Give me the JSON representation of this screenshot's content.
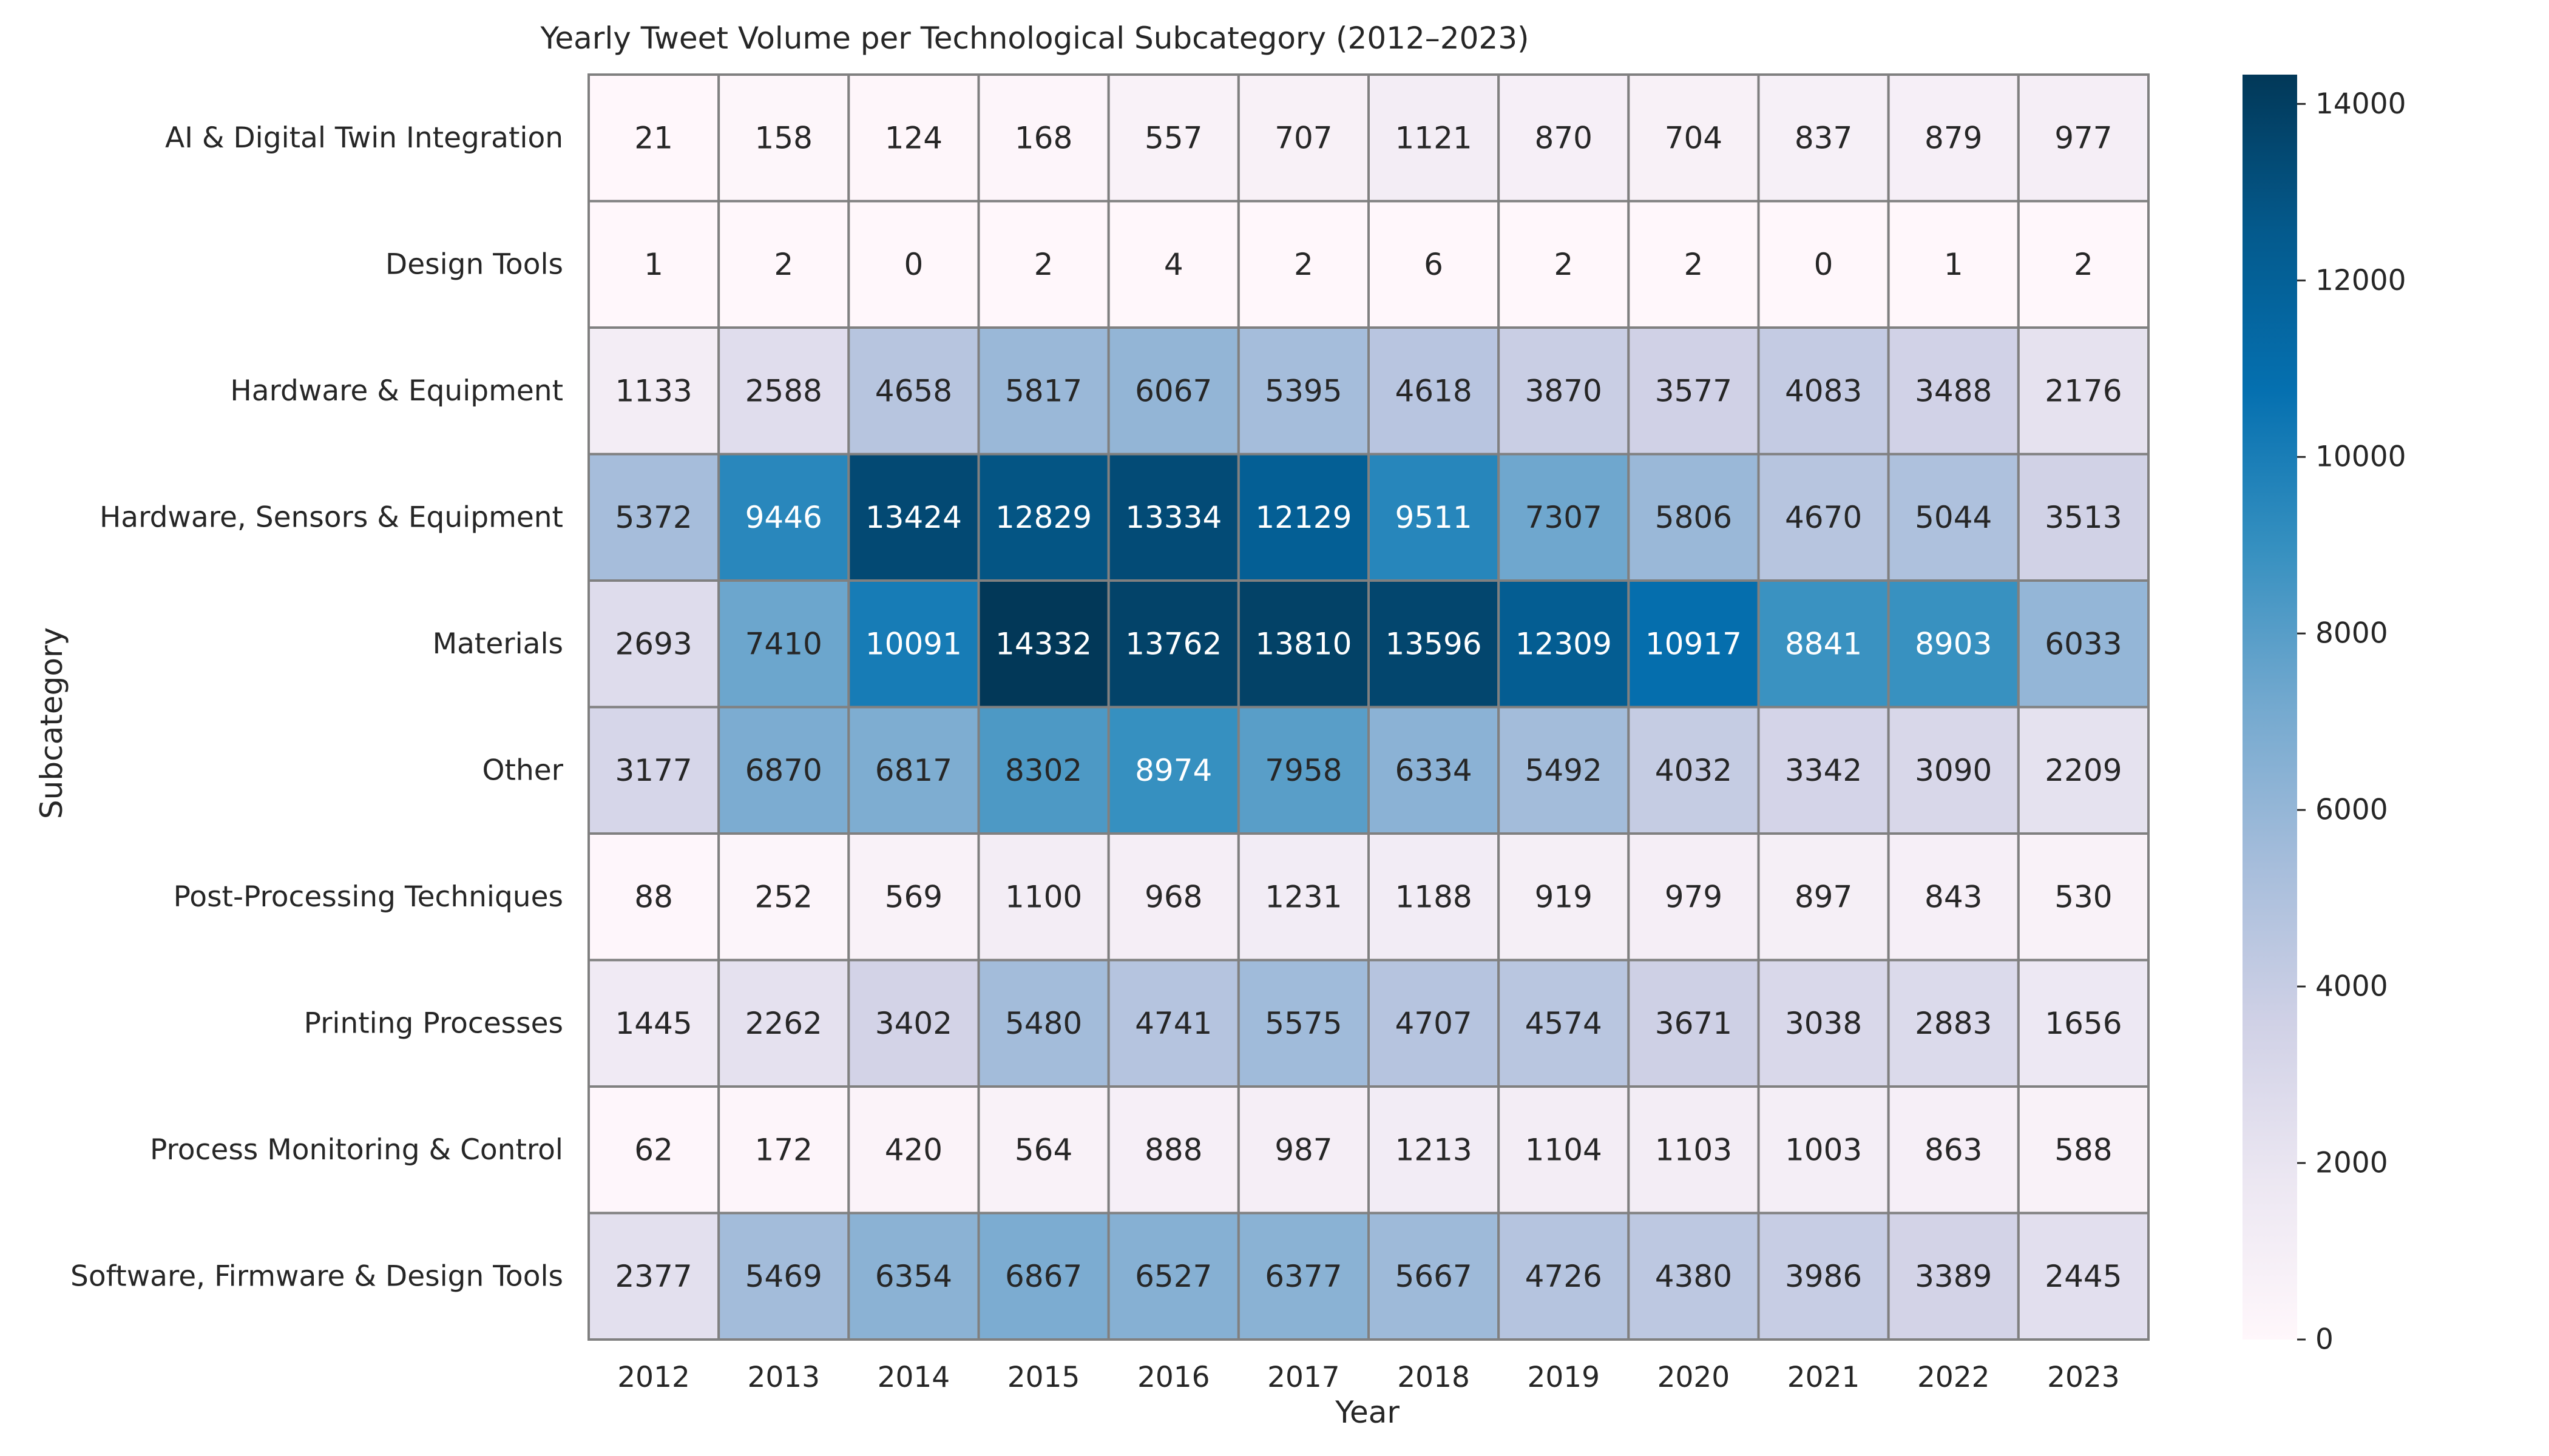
{
  "chart_data": {
    "type": "heatmap",
    "title": "Yearly Tweet Volume per Technological Subcategory (2012–2023)",
    "xlabel": "Year",
    "ylabel": "Subcategory",
    "x": [
      "2012",
      "2013",
      "2014",
      "2015",
      "2016",
      "2017",
      "2018",
      "2019",
      "2020",
      "2021",
      "2022",
      "2023"
    ],
    "y": [
      "AI & Digital Twin Integration",
      "Design Tools",
      "Hardware & Equipment",
      "Hardware, Sensors & Equipment",
      "Materials",
      "Other",
      "Post-Processing Techniques",
      "Printing Processes",
      "Process Monitoring & Control",
      "Software, Firmware & Design Tools"
    ],
    "values": [
      [
        21,
        158,
        124,
        168,
        557,
        707,
        1121,
        870,
        704,
        837,
        879,
        977
      ],
      [
        1,
        2,
        0,
        2,
        4,
        2,
        6,
        2,
        2,
        0,
        1,
        2
      ],
      [
        1133,
        2588,
        4658,
        5817,
        6067,
        5395,
        4618,
        3870,
        3577,
        4083,
        3488,
        2176
      ],
      [
        5372,
        9446,
        13424,
        12829,
        13334,
        12129,
        9511,
        7307,
        5806,
        4670,
        5044,
        3513
      ],
      [
        2693,
        7410,
        10091,
        14332,
        13762,
        13810,
        13596,
        12309,
        10917,
        8841,
        8903,
        6033
      ],
      [
        3177,
        6870,
        6817,
        8302,
        8974,
        7958,
        6334,
        5492,
        4032,
        3342,
        3090,
        2209
      ],
      [
        88,
        252,
        569,
        1100,
        968,
        1231,
        1188,
        919,
        979,
        897,
        843,
        530
      ],
      [
        1445,
        2262,
        3402,
        5480,
        4741,
        5575,
        4707,
        4574,
        3671,
        3038,
        2883,
        1656
      ],
      [
        62,
        172,
        420,
        564,
        888,
        987,
        1213,
        1104,
        1103,
        1003,
        863,
        588
      ],
      [
        2377,
        5469,
        6354,
        6867,
        6527,
        6377,
        5667,
        4726,
        4380,
        3986,
        3389,
        2445
      ]
    ],
    "colorbar": {
      "min": 0,
      "max": 14332,
      "ticks": [
        "0",
        "2000",
        "4000",
        "6000",
        "8000",
        "10000",
        "12000",
        "14000"
      ],
      "colormap": "PuBu",
      "colors": [
        "#fff7fb",
        "#ece7f2",
        "#d0d1e6",
        "#a6bddb",
        "#74a9cf",
        "#3690c0",
        "#0570b0",
        "#045a8d",
        "#023858"
      ]
    },
    "grid": false,
    "cell_border_color": "#808080"
  }
}
